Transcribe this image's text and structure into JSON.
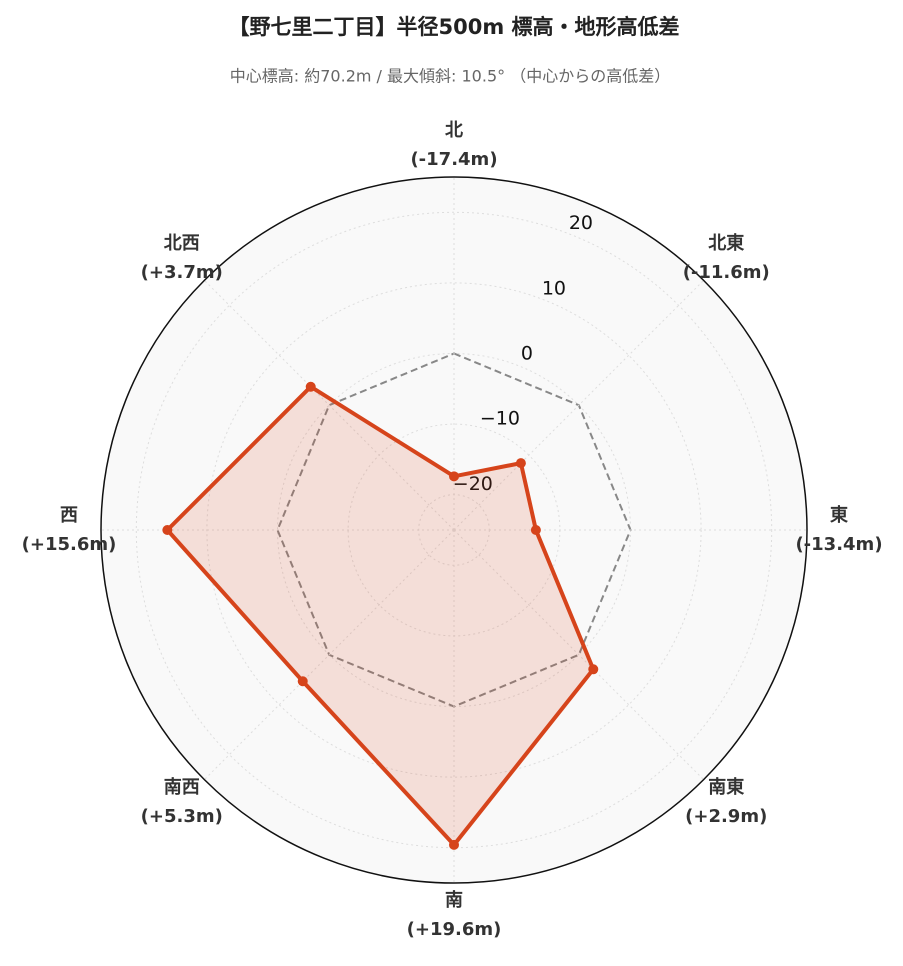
{
  "chart_data": {
    "type": "radar",
    "title": "【野七里二丁目】半径500m 標高・地形高低差",
    "subtitle": "中心標高: 約70.2m / 最大傾斜: 10.5° （中心からの高低差）",
    "categories": [
      "北",
      "北東",
      "東",
      "南東",
      "南",
      "南西",
      "西",
      "北西"
    ],
    "values": [
      -17.4,
      -11.6,
      -13.4,
      2.9,
      19.6,
      5.3,
      15.6,
      3.7
    ],
    "value_labels": [
      "(-17.4m)",
      "(-11.6m)",
      "(-13.4m)",
      "(+2.9m)",
      "(+19.6m)",
      "(+5.3m)",
      "(+15.6m)",
      "(+3.7m)"
    ],
    "color": "#d6441b",
    "ylim": [
      -25,
      25
    ],
    "yticks": [
      {
        "value": -20,
        "label": "−20"
      },
      {
        "value": -10,
        "label": "−10"
      },
      0,
      10,
      20
    ],
    "grid": true
  }
}
